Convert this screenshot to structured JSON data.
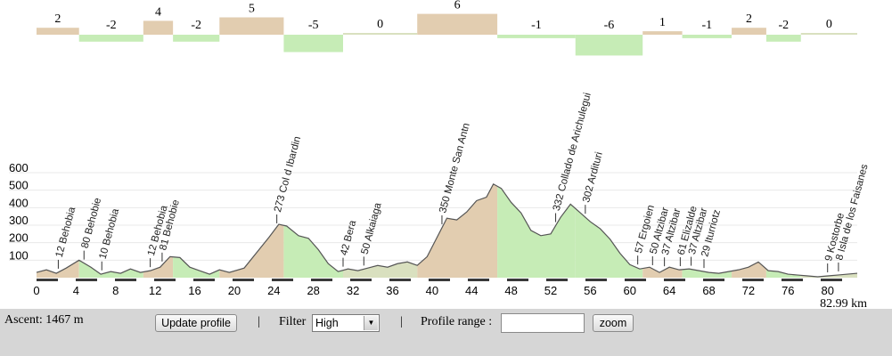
{
  "chart_data": {
    "type": "area",
    "xlim": [
      0,
      83
    ],
    "ylim": [
      0,
      600
    ],
    "x_ticks": [
      0,
      4,
      8,
      12,
      16,
      20,
      24,
      28,
      32,
      36,
      40,
      44,
      48,
      52,
      56,
      60,
      64,
      68,
      72,
      76,
      80
    ],
    "y_ticks": [
      100,
      200,
      300,
      400,
      500,
      600
    ],
    "total_distance_label": "82.99 km",
    "grid": "horizontal",
    "colors": {
      "ascent": "#e2cdb0",
      "descent": "#c6ecb6",
      "flat": "#d9e0bf",
      "line": "#555555"
    },
    "profile": [
      {
        "x": 0,
        "y": 30
      },
      {
        "x": 1,
        "y": 45
      },
      {
        "x": 2,
        "y": 25
      },
      {
        "x": 3,
        "y": 55
      },
      {
        "x": 4.3,
        "y": 100
      },
      {
        "x": 5.5,
        "y": 60
      },
      {
        "x": 6.5,
        "y": 20
      },
      {
        "x": 7.5,
        "y": 35
      },
      {
        "x": 8.5,
        "y": 25
      },
      {
        "x": 9.5,
        "y": 50
      },
      {
        "x": 10.5,
        "y": 30
      },
      {
        "x": 11.5,
        "y": 40
      },
      {
        "x": 12.5,
        "y": 60
      },
      {
        "x": 13.5,
        "y": 120
      },
      {
        "x": 14.5,
        "y": 115
      },
      {
        "x": 15.5,
        "y": 60
      },
      {
        "x": 16.5,
        "y": 40
      },
      {
        "x": 17.5,
        "y": 20
      },
      {
        "x": 18.5,
        "y": 45
      },
      {
        "x": 19.5,
        "y": 30
      },
      {
        "x": 21,
        "y": 55
      },
      {
        "x": 22.5,
        "y": 160
      },
      {
        "x": 23.5,
        "y": 230
      },
      {
        "x": 24.5,
        "y": 305
      },
      {
        "x": 25.3,
        "y": 295
      },
      {
        "x": 26.5,
        "y": 240
      },
      {
        "x": 27.5,
        "y": 225
      },
      {
        "x": 28.5,
        "y": 160
      },
      {
        "x": 29.5,
        "y": 80
      },
      {
        "x": 30.5,
        "y": 35
      },
      {
        "x": 31.5,
        "y": 50
      },
      {
        "x": 32.5,
        "y": 40
      },
      {
        "x": 33.5,
        "y": 55
      },
      {
        "x": 34.5,
        "y": 70
      },
      {
        "x": 35.5,
        "y": 60
      },
      {
        "x": 36.5,
        "y": 80
      },
      {
        "x": 37.5,
        "y": 90
      },
      {
        "x": 38.5,
        "y": 70
      },
      {
        "x": 39.5,
        "y": 120
      },
      {
        "x": 40.5,
        "y": 230
      },
      {
        "x": 41.5,
        "y": 340
      },
      {
        "x": 42.5,
        "y": 330
      },
      {
        "x": 43.5,
        "y": 375
      },
      {
        "x": 44.5,
        "y": 440
      },
      {
        "x": 45.5,
        "y": 460
      },
      {
        "x": 46.2,
        "y": 535
      },
      {
        "x": 47,
        "y": 510
      },
      {
        "x": 48,
        "y": 430
      },
      {
        "x": 49,
        "y": 370
      },
      {
        "x": 50,
        "y": 270
      },
      {
        "x": 51,
        "y": 240
      },
      {
        "x": 52,
        "y": 250
      },
      {
        "x": 53,
        "y": 345
      },
      {
        "x": 54,
        "y": 420
      },
      {
        "x": 55,
        "y": 370
      },
      {
        "x": 56,
        "y": 320
      },
      {
        "x": 57,
        "y": 280
      },
      {
        "x": 58,
        "y": 220
      },
      {
        "x": 59,
        "y": 140
      },
      {
        "x": 60,
        "y": 75
      },
      {
        "x": 61,
        "y": 50
      },
      {
        "x": 62,
        "y": 60
      },
      {
        "x": 63,
        "y": 30
      },
      {
        "x": 64,
        "y": 60
      },
      {
        "x": 65,
        "y": 45
      },
      {
        "x": 66,
        "y": 50
      },
      {
        "x": 67,
        "y": 40
      },
      {
        "x": 68,
        "y": 30
      },
      {
        "x": 69,
        "y": 25
      },
      {
        "x": 70,
        "y": 35
      },
      {
        "x": 71,
        "y": 45
      },
      {
        "x": 72,
        "y": 60
      },
      {
        "x": 73,
        "y": 90
      },
      {
        "x": 74,
        "y": 40
      },
      {
        "x": 75,
        "y": 35
      },
      {
        "x": 76,
        "y": 20
      },
      {
        "x": 77,
        "y": 15
      },
      {
        "x": 78,
        "y": 10
      },
      {
        "x": 79,
        "y": 5
      },
      {
        "x": 80,
        "y": 10
      },
      {
        "x": 81,
        "y": 15
      },
      {
        "x": 82,
        "y": 20
      },
      {
        "x": 83,
        "y": 25
      }
    ],
    "segments": [
      {
        "x0": 0,
        "x1": 4.3,
        "grade": "2"
      },
      {
        "x0": 4.3,
        "x1": 10.8,
        "grade": "-2"
      },
      {
        "x0": 10.8,
        "x1": 13.8,
        "grade": "4"
      },
      {
        "x0": 13.8,
        "x1": 18.5,
        "grade": "-2"
      },
      {
        "x0": 18.5,
        "x1": 25,
        "grade": "5"
      },
      {
        "x0": 25,
        "x1": 31,
        "grade": "-5"
      },
      {
        "x0": 31,
        "x1": 38.5,
        "grade": "0"
      },
      {
        "x0": 38.5,
        "x1": 46.6,
        "grade": "6"
      },
      {
        "x0": 46.6,
        "x1": 54.5,
        "grade": "-1"
      },
      {
        "x0": 54.5,
        "x1": 61.3,
        "grade": "-6"
      },
      {
        "x0": 61.3,
        "x1": 65.3,
        "grade": "1"
      },
      {
        "x0": 65.3,
        "x1": 70.3,
        "grade": "-1"
      },
      {
        "x0": 70.3,
        "x1": 73.8,
        "grade": "2"
      },
      {
        "x0": 73.8,
        "x1": 77.3,
        "grade": "-2"
      },
      {
        "x0": 77.3,
        "x1": 83,
        "grade": "0"
      }
    ],
    "waypoints": [
      {
        "x": 2.2,
        "label": "12 Behobia"
      },
      {
        "x": 4.8,
        "label": "80 Behobie"
      },
      {
        "x": 6.6,
        "label": "10 Behobia"
      },
      {
        "x": 11.5,
        "label": "12 Behobia"
      },
      {
        "x": 12.7,
        "label": "81 Behobie"
      },
      {
        "x": 24.3,
        "label": "273 Col d Ibardin"
      },
      {
        "x": 31.0,
        "label": "42 Bera"
      },
      {
        "x": 33.1,
        "label": "50 Alkaiaga"
      },
      {
        "x": 41.0,
        "label": "350 Monte San Antn"
      },
      {
        "x": 52.5,
        "label": "332 Collado de Arichulegui"
      },
      {
        "x": 55.5,
        "label": "302 Ardituri"
      },
      {
        "x": 60.8,
        "label": "57 Ergoien"
      },
      {
        "x": 62.3,
        "label": "50 Altzibar"
      },
      {
        "x": 63.5,
        "label": "37 Altzibar"
      },
      {
        "x": 65.1,
        "label": "61 Elizalde"
      },
      {
        "x": 66.2,
        "label": "37 Altzibar"
      },
      {
        "x": 67.5,
        "label": "29 Iturriotz"
      },
      {
        "x": 80.0,
        "label": "9 Kostorbe"
      },
      {
        "x": 81.1,
        "label": "8 Isla de los Faisanes"
      }
    ]
  },
  "controls": {
    "ascent_label": "Ascent: 1467 m",
    "update_button": "Update profile",
    "separator": "|",
    "filter_label": "Filter",
    "filter_value": "High",
    "range_label": "Profile range :",
    "range_value": "",
    "zoom_button": "zoom"
  }
}
